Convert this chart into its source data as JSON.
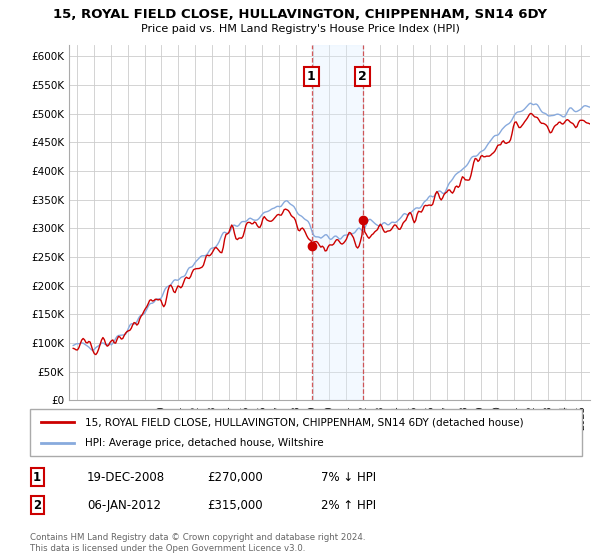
{
  "title_line1": "15, ROYAL FIELD CLOSE, HULLAVINGTON, CHIPPENHAM, SN14 6DY",
  "title_line2": "Price paid vs. HM Land Registry's House Price Index (HPI)",
  "ylim": [
    0,
    620000
  ],
  "yticks": [
    0,
    50000,
    100000,
    150000,
    200000,
    250000,
    300000,
    350000,
    400000,
    450000,
    500000,
    550000,
    600000
  ],
  "ytick_labels": [
    "£0",
    "£50K",
    "£100K",
    "£150K",
    "£200K",
    "£250K",
    "£300K",
    "£350K",
    "£400K",
    "£450K",
    "£500K",
    "£550K",
    "£600K"
  ],
  "sale1_date": 2008.97,
  "sale1_price": 270000,
  "sale1_date_str": "19-DEC-2008",
  "sale2_date": 2012.02,
  "sale2_price": 315000,
  "sale2_date_str": "06-JAN-2012",
  "shade_x1": 2008.97,
  "shade_x2": 2012.02,
  "line_color_property": "#cc0000",
  "line_color_hpi": "#88aadd",
  "shade_color": "#ddeeff",
  "legend_label_property": "15, ROYAL FIELD CLOSE, HULLAVINGTON, CHIPPENHAM, SN14 6DY (detached house)",
  "legend_label_hpi": "HPI: Average price, detached house, Wiltshire",
  "footer_text": "Contains HM Land Registry data © Crown copyright and database right 2024.\nThis data is licensed under the Open Government Licence v3.0.",
  "sale1_price_str": "£270,000",
  "sale1_hpi_str": "7% ↓ HPI",
  "sale2_price_str": "£315,000",
  "sale2_hpi_str": "2% ↑ HPI",
  "xlim_start": 1994.5,
  "xlim_end": 2025.5
}
